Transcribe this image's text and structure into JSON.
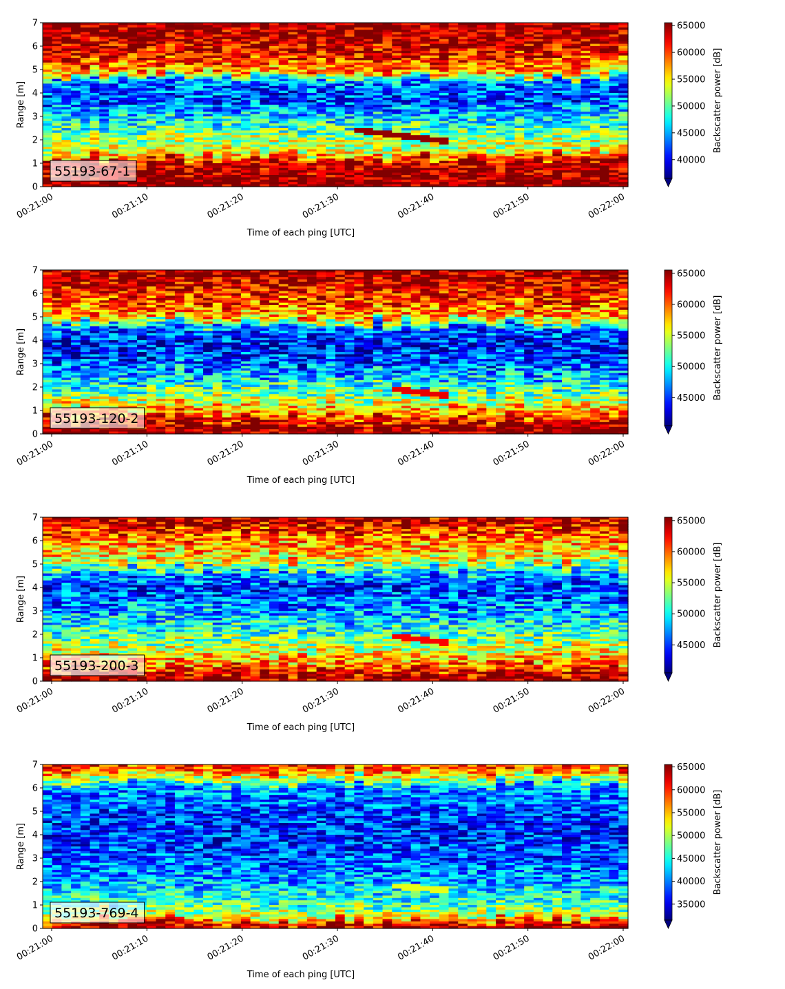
{
  "figure": {
    "colors": {
      "cmap": "jet",
      "frame": "#000000",
      "label_box_edge": "#000000"
    }
  },
  "chart_data": [
    {
      "type": "heatmap",
      "label": "55193-67-1",
      "xlabel": "Time of each ping [UTC]",
      "ylabel": "Range [m]",
      "xlim": [
        "00:21:00",
        "00:22:00"
      ],
      "xticks": [
        "00:21:00",
        "00:21:10",
        "00:21:20",
        "00:21:30",
        "00:21:40",
        "00:21:50",
        "00:22:00"
      ],
      "ylim": [
        0,
        7
      ],
      "yticks": [
        "0",
        "1",
        "2",
        "3",
        "4",
        "5",
        "6",
        "7"
      ],
      "grid": false,
      "colorbar": {
        "label": "Backscatter power [dB]",
        "range": [
          36500,
          65535
        ],
        "ticks": [
          "40000",
          "45000",
          "50000",
          "55000",
          "60000",
          "65000"
        ],
        "extend": "min"
      },
      "profile": [
        [
          0.0,
          65500
        ],
        [
          0.3,
          65500
        ],
        [
          1.1,
          63000
        ],
        [
          1.5,
          54000
        ],
        [
          2.0,
          52000
        ],
        [
          3.0,
          46500
        ],
        [
          3.8,
          41500
        ],
        [
          4.5,
          44000
        ],
        [
          4.9,
          57000
        ],
        [
          5.5,
          61000
        ],
        [
          6.2,
          63500
        ],
        [
          7.0,
          65500
        ]
      ],
      "feature": {
        "t_start": 32,
        "t_end": 42,
        "range_start": 2.4,
        "range_end": 1.9,
        "value": 65000
      },
      "noise": 5500
    },
    {
      "type": "heatmap",
      "label": "55193-120-2",
      "xlabel": "Time of each ping [UTC]",
      "ylabel": "Range [m]",
      "xlim": [
        "00:21:00",
        "00:22:00"
      ],
      "xticks": [
        "00:21:00",
        "00:21:10",
        "00:21:20",
        "00:21:30",
        "00:21:40",
        "00:21:50",
        "00:22:00"
      ],
      "ylim": [
        0,
        7
      ],
      "yticks": [
        "0",
        "1",
        "2",
        "3",
        "4",
        "5",
        "6",
        "7"
      ],
      "grid": false,
      "colorbar": {
        "label": "Backscatter power [dB]",
        "range": [
          40500,
          65535
        ],
        "ticks": [
          "45000",
          "50000",
          "55000",
          "60000",
          "65000"
        ],
        "extend": "min"
      },
      "profile": [
        [
          0.0,
          65500
        ],
        [
          0.3,
          65000
        ],
        [
          0.8,
          60000
        ],
        [
          1.3,
          56000
        ],
        [
          2.0,
          51000
        ],
        [
          3.0,
          46000
        ],
        [
          3.8,
          43500
        ],
        [
          4.5,
          46000
        ],
        [
          5.0,
          58000
        ],
        [
          5.5,
          60000
        ],
        [
          6.3,
          63000
        ],
        [
          7.0,
          65500
        ]
      ],
      "feature": {
        "t_start": 36,
        "t_end": 42,
        "range_start": 1.9,
        "range_end": 1.6,
        "value": 63000
      },
      "noise": 5000
    },
    {
      "type": "heatmap",
      "label": "55193-200-3",
      "xlabel": "Time of each ping [UTC]",
      "ylabel": "Range [m]",
      "xlim": [
        "00:21:00",
        "00:22:00"
      ],
      "xticks": [
        "00:21:00",
        "00:21:10",
        "00:21:20",
        "00:21:30",
        "00:21:40",
        "00:21:50",
        "00:22:00"
      ],
      "ylim": [
        0,
        7
      ],
      "yticks": [
        "0",
        "1",
        "2",
        "3",
        "4",
        "5",
        "6",
        "7"
      ],
      "grid": false,
      "colorbar": {
        "label": "Backscatter power [dB]",
        "range": [
          40500,
          65535
        ],
        "ticks": [
          "45000",
          "50000",
          "55000",
          "60000",
          "65000"
        ],
        "extend": "min"
      },
      "profile": [
        [
          0.0,
          65500
        ],
        [
          0.3,
          63500
        ],
        [
          0.8,
          58500
        ],
        [
          1.3,
          55500
        ],
        [
          2.0,
          51500
        ],
        [
          3.0,
          47500
        ],
        [
          4.0,
          44500
        ],
        [
          4.6,
          48500
        ],
        [
          5.2,
          56500
        ],
        [
          6.0,
          59000
        ],
        [
          6.6,
          62500
        ],
        [
          7.0,
          65000
        ]
      ],
      "feature": {
        "t_start": 36,
        "t_end": 42,
        "range_start": 1.9,
        "range_end": 1.6,
        "value": 62500
      },
      "noise": 5000
    },
    {
      "type": "heatmap",
      "label": "55193-769-4",
      "xlabel": "Time of each ping [UTC]",
      "ylabel": "Range [m]",
      "xlim": [
        "00:21:00",
        "00:22:00"
      ],
      "xticks": [
        "00:21:00",
        "00:21:10",
        "00:21:20",
        "00:21:30",
        "00:21:40",
        "00:21:50",
        "00:22:00"
      ],
      "ylim": [
        0,
        7
      ],
      "yticks": [
        "0",
        "1",
        "2",
        "3",
        "4",
        "5",
        "6",
        "7"
      ],
      "grid": false,
      "colorbar": {
        "label": "Backscatter power [dB]",
        "range": [
          31500,
          65535
        ],
        "ticks": [
          "35000",
          "40000",
          "45000",
          "50000",
          "55000",
          "60000",
          "65000"
        ],
        "extend": "min"
      },
      "profile": [
        [
          0.0,
          65000
        ],
        [
          0.3,
          60000
        ],
        [
          0.5,
          52000
        ],
        [
          1.0,
          46500
        ],
        [
          1.5,
          44000
        ],
        [
          2.0,
          41500
        ],
        [
          3.0,
          38500
        ],
        [
          4.0,
          37000
        ],
        [
          5.0,
          38000
        ],
        [
          6.0,
          40500
        ],
        [
          6.5,
          52000
        ],
        [
          6.8,
          58000
        ],
        [
          7.0,
          60000
        ]
      ],
      "feature": {
        "t_start": 36,
        "t_end": 42,
        "range_start": 1.8,
        "range_end": 1.6,
        "value": 52000
      },
      "noise": 6000
    }
  ]
}
